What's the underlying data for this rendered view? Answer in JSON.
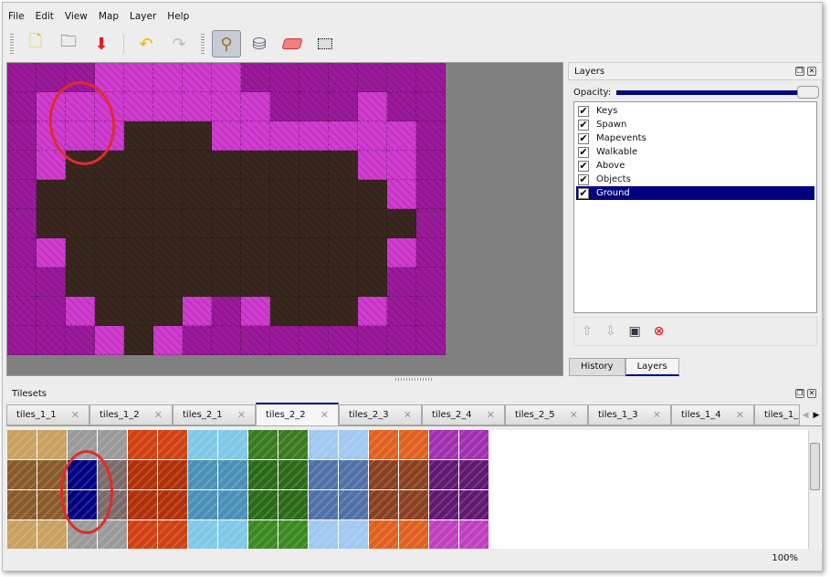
{
  "menu": [
    "File",
    "Edit",
    "View",
    "Map",
    "Layer",
    "Help"
  ],
  "toolbar": {
    "icons": [
      "new-document-icon",
      "open-folder-icon",
      "save-icon",
      "undo-icon",
      "redo-icon",
      "stamp-brush-icon",
      "bucket-fill-icon",
      "eraser-icon",
      "rectangle-select-icon"
    ],
    "active": "stamp-brush-icon"
  },
  "layers_panel": {
    "title": "Layers",
    "opacity_label": "Opacity:",
    "opacity": 1.0,
    "items": [
      {
        "label": "Keys",
        "checked": true
      },
      {
        "label": "Spawn",
        "checked": true
      },
      {
        "label": "Mapevents",
        "checked": true
      },
      {
        "label": "Walkable",
        "checked": true
      },
      {
        "label": "Above",
        "checked": true
      },
      {
        "label": "Objects",
        "checked": true
      },
      {
        "label": "Ground",
        "checked": true,
        "selected": true
      }
    ],
    "tabs": [
      "History",
      "Layers"
    ],
    "active_tab": "Layers"
  },
  "tilesets": {
    "title": "Tilesets",
    "tabs": [
      "tiles_1_1",
      "tiles_1_2",
      "tiles_2_1",
      "tiles_2_2",
      "tiles_2_3",
      "tiles_2_4",
      "tiles_2_5",
      "tiles_1_3",
      "tiles_1_4",
      "tiles_1_"
    ],
    "active_tab": "tiles_2_2"
  },
  "colors": {
    "magenta": "#9c1a9c",
    "light_magenta": "#d23cd2",
    "dirt": "#3a2820",
    "selection": "#000080",
    "highlight_circle": "#e02b2b"
  },
  "status": {
    "zoom": "100%"
  }
}
